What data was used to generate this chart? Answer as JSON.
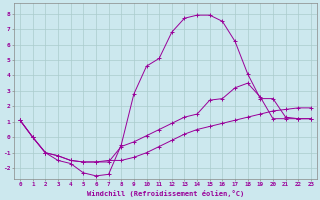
{
  "xlabel": "Windchill (Refroidissement éolien,°C)",
  "bg_color": "#cce8ee",
  "grid_color": "#aacccc",
  "line_color": "#990099",
  "x_ticks": [
    0,
    1,
    2,
    3,
    4,
    5,
    6,
    7,
    8,
    9,
    10,
    11,
    12,
    13,
    14,
    15,
    16,
    17,
    18,
    19,
    20,
    21,
    22,
    23
  ],
  "y_ticks": [
    -2,
    -1,
    0,
    1,
    2,
    3,
    4,
    5,
    6,
    7,
    8
  ],
  "xlim": [
    -0.5,
    23.5
  ],
  "ylim": [
    -2.7,
    8.7
  ],
  "curve1_x": [
    0,
    1,
    2,
    3,
    4,
    5,
    6,
    7,
    8,
    9,
    10,
    11,
    12,
    13,
    14,
    15,
    16,
    17,
    18,
    19,
    20,
    21,
    22,
    23
  ],
  "curve1_y": [
    1.1,
    0.0,
    -1.0,
    -1.5,
    -1.7,
    -2.3,
    -2.5,
    -2.4,
    -0.5,
    2.8,
    4.6,
    5.1,
    6.8,
    7.7,
    7.9,
    7.9,
    7.5,
    6.2,
    4.1,
    2.5,
    2.5,
    1.3,
    1.2,
    1.2
  ],
  "curve2_x": [
    0,
    1,
    2,
    3,
    4,
    5,
    6,
    7,
    8,
    9,
    10,
    11,
    12,
    13,
    14,
    15,
    16,
    17,
    18,
    19,
    20,
    21,
    22,
    23
  ],
  "curve2_y": [
    1.1,
    0.0,
    -1.0,
    -1.2,
    -1.5,
    -1.6,
    -1.6,
    -1.6,
    -0.6,
    -0.3,
    0.1,
    0.5,
    0.9,
    1.3,
    1.5,
    2.4,
    2.5,
    3.2,
    3.5,
    2.6,
    1.2,
    1.2,
    1.2,
    1.2
  ],
  "curve3_x": [
    0,
    1,
    2,
    3,
    4,
    5,
    6,
    7,
    8,
    9,
    10,
    11,
    12,
    13,
    14,
    15,
    16,
    17,
    18,
    19,
    20,
    21,
    22,
    23
  ],
  "curve3_y": [
    1.1,
    0.0,
    -1.0,
    -1.2,
    -1.5,
    -1.6,
    -1.6,
    -1.5,
    -1.5,
    -1.3,
    -1.0,
    -0.6,
    -0.2,
    0.2,
    0.5,
    0.7,
    0.9,
    1.1,
    1.3,
    1.5,
    1.7,
    1.8,
    1.9,
    1.9
  ]
}
